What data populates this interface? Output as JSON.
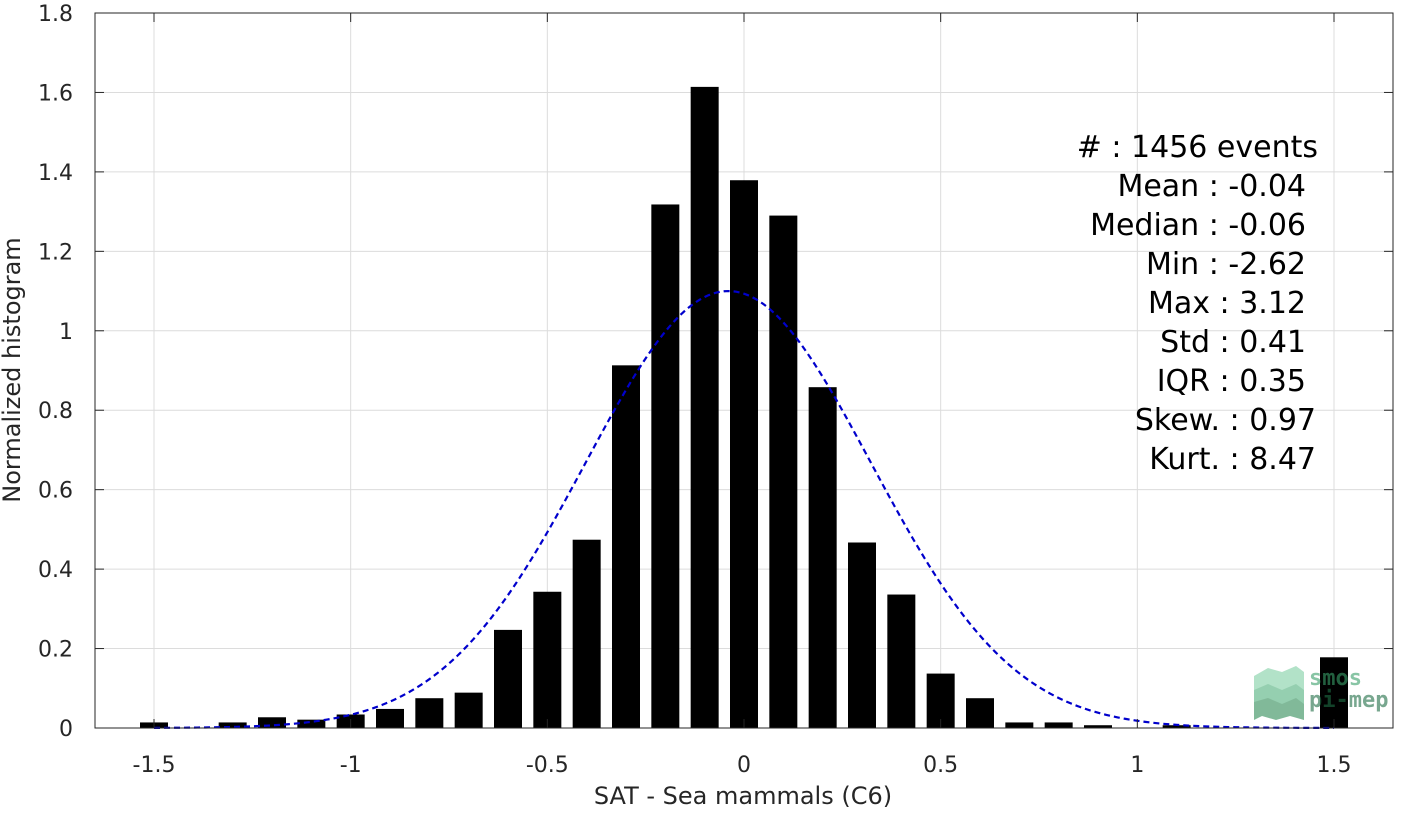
{
  "chart_data": {
    "type": "bar",
    "xlabel": "SAT - Sea mammals (C6)",
    "ylabel": "Normalized histogram",
    "xlim": [
      -1.65,
      1.65
    ],
    "ylim": [
      0,
      1.8
    ],
    "xticks": [
      -1.5,
      -1,
      -0.5,
      0,
      0.5,
      1,
      1.5
    ],
    "xtick_labels": [
      "-1.5",
      "-1",
      "-0.5",
      "0",
      "0.5",
      "1",
      "1.5"
    ],
    "yticks": [
      0,
      0.2,
      0.4,
      0.6,
      0.8,
      1,
      1.2,
      1.4,
      1.6,
      1.8
    ],
    "ytick_labels": [
      "0",
      "0.2",
      "0.4",
      "0.6",
      "0.8",
      "1",
      "1.2",
      "1.4",
      "1.6",
      "1.8"
    ],
    "grid": true,
    "bar_color": "#000000",
    "series": [
      {
        "x": [
          -1.5,
          -1.4,
          -1.3,
          -1.2,
          -1.1,
          -1.0,
          -0.9,
          -0.8,
          -0.7,
          -0.6,
          -0.5,
          -0.4,
          -0.3,
          -0.2,
          -0.1,
          0.0,
          0.1,
          0.2,
          0.3,
          0.4,
          0.5,
          0.6,
          0.7,
          0.8,
          0.9,
          1.0,
          1.1,
          1.2,
          1.3,
          1.4,
          1.5
        ],
        "values": [
          0.014,
          0,
          0.014,
          0.027,
          0.021,
          0.034,
          0.048,
          0.075,
          0.089,
          0.247,
          0.343,
          0.474,
          0.913,
          1.318,
          1.614,
          1.379,
          1.29,
          0.858,
          0.467,
          0.336,
          0.137,
          0.075,
          0.014,
          0.014,
          0.007,
          0,
          0.007,
          0,
          0,
          0,
          0.178
        ]
      }
    ],
    "fit_curve": {
      "type": "normal",
      "mean": -0.04,
      "std": 0.363,
      "peak": 1.1,
      "color": "#0000cc",
      "style": "dashed"
    },
    "annotations": [
      "#  : 1456 events",
      "Mean : -0.04",
      "Median : -0.06",
      "Min : -2.62",
      "Max : 3.12",
      "Std : 0.41",
      "IQR : 0.35",
      "Skew. : 0.97",
      "Kurt. : 8.47"
    ]
  },
  "watermark": {
    "line1": "smos",
    "line2": "pi-mep",
    "color": "#2e8b57"
  }
}
